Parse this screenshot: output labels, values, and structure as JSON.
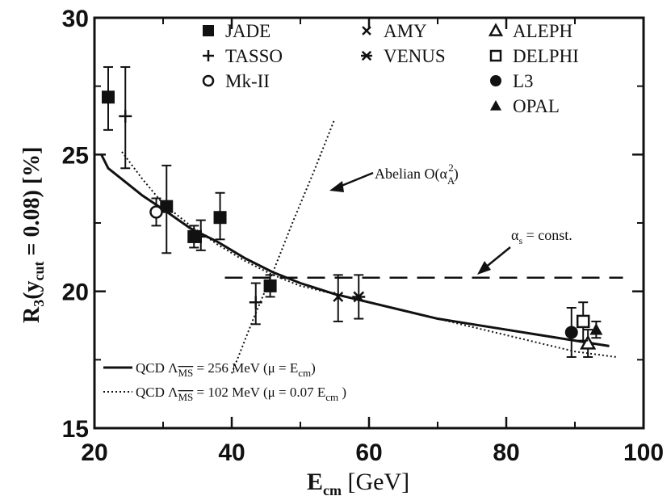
{
  "chart_data": {
    "type": "scatter",
    "xlim": [
      20,
      100
    ],
    "ylim": [
      15,
      30
    ],
    "x_ticks": [
      "20",
      "40",
      "60",
      "80",
      "100"
    ],
    "y_ticks": [
      "15",
      "20",
      "25",
      "30"
    ],
    "ylabel_text": {
      "main": "R",
      "sub3": "3",
      "open": "(y",
      "cut": "cut",
      "rest": " = 0.08) [%]"
    },
    "xlabel_text": {
      "main": "E",
      "cm": "cm",
      "rest": " [GeV]"
    },
    "grid": false,
    "legend_placement": "top",
    "series": [
      {
        "name": "JADE",
        "marker": "filled-square",
        "points": [
          {
            "x": 22,
            "y": 27.1,
            "lo": 25.9,
            "hi": 28.2
          },
          {
            "x": 30.5,
            "y": 23.1,
            "lo": 21.4,
            "hi": 24.6
          },
          {
            "x": 34.5,
            "y": 22.0,
            "lo": 21.6,
            "hi": 22.4
          },
          {
            "x": 38.3,
            "y": 22.7,
            "lo": 21.9,
            "hi": 23.6
          },
          {
            "x": 45.6,
            "y": 20.2,
            "lo": 19.8,
            "hi": 20.6
          }
        ]
      },
      {
        "name": "TASSO",
        "marker": "plus",
        "points": [
          {
            "x": 24.5,
            "y": 26.4,
            "lo": 24.5,
            "hi": 28.2
          },
          {
            "x": 35.5,
            "y": 22.0,
            "lo": 21.5,
            "hi": 22.6
          },
          {
            "x": 43.5,
            "y": 19.6,
            "lo": 18.8,
            "hi": 20.3
          }
        ]
      },
      {
        "name": "Mk-II",
        "marker": "open-circle",
        "points": [
          {
            "x": 29,
            "y": 22.9,
            "lo": 22.4,
            "hi": 23.4
          }
        ]
      },
      {
        "name": "AMY",
        "marker": "cross",
        "points": [
          {
            "x": 55.5,
            "y": 19.8,
            "lo": 18.9,
            "hi": 20.6
          }
        ]
      },
      {
        "name": "VENUS",
        "marker": "star",
        "points": [
          {
            "x": 58.5,
            "y": 19.8,
            "lo": 19.0,
            "hi": 20.6
          }
        ]
      },
      {
        "name": "ALEPH",
        "marker": "open-triangle",
        "points": [
          {
            "x": 91.9,
            "y": 18.1,
            "lo": 17.6,
            "hi": 18.6
          }
        ]
      },
      {
        "name": "DELPHI",
        "marker": "open-square",
        "points": [
          {
            "x": 91.2,
            "y": 18.9,
            "lo": 18.2,
            "hi": 19.6
          }
        ]
      },
      {
        "name": "L3",
        "marker": "filled-circle",
        "points": [
          {
            "x": 89.5,
            "y": 18.5,
            "lo": 17.6,
            "hi": 19.4
          }
        ]
      },
      {
        "name": "OPAL",
        "marker": "filled-triangle",
        "points": [
          {
            "x": 93.1,
            "y": 18.6,
            "lo": 18.3,
            "hi": 18.9
          }
        ]
      }
    ],
    "curves": [
      {
        "name": "QCD Λ_MS = 256 MeV (μ = E_cm)",
        "style": "solid",
        "x": [
          21,
          22,
          24,
          27,
          30,
          34,
          38,
          42,
          46,
          50,
          55,
          60,
          65,
          70,
          75,
          80,
          85,
          90,
          95
        ],
        "y": [
          25.0,
          24.5,
          24.1,
          23.5,
          23.0,
          22.3,
          21.8,
          21.2,
          20.7,
          20.3,
          19.9,
          19.6,
          19.3,
          19.0,
          18.8,
          18.6,
          18.4,
          18.2,
          18.0
        ]
      },
      {
        "name": "QCD Λ_MS = 102 MeV (μ = 0.07 E_cm)",
        "style": "dotted",
        "x": [
          24,
          27,
          30,
          34,
          38,
          42,
          46,
          50,
          55,
          60,
          65,
          70,
          75,
          80,
          85,
          90,
          96
        ],
        "y": [
          25.1,
          24.1,
          23.2,
          22.4,
          21.7,
          21.1,
          20.6,
          20.2,
          19.9,
          19.6,
          19.3,
          19.0,
          18.7,
          18.4,
          18.1,
          17.8,
          17.6
        ]
      },
      {
        "name": "Abelian",
        "style": "dotted",
        "x": [
          40,
          43,
          46,
          49,
          52,
          55
        ],
        "y": [
          17.0,
          18.9,
          20.7,
          22.6,
          24.4,
          26.3
        ]
      },
      {
        "name": "alpha_s const",
        "style": "dashed",
        "x": [
          39,
          97
        ],
        "y": [
          20.5,
          20.5
        ]
      }
    ],
    "annotations": {
      "abelian": {
        "prefix": "Abelian O(α",
        "sub": "A",
        "sup": "2",
        "suffix": ")"
      },
      "alpha_const": {
        "prefix": "α",
        "sub": "s",
        "suffix": " = const."
      }
    },
    "curve_legend": {
      "solid": {
        "a": "QCD  Λ",
        "ms": "MS",
        "b": " = 256 MeV (μ  = E",
        "cm": "cm",
        "c": ")"
      },
      "dotted": {
        "a": "QCD  Λ",
        "ms": "MS",
        "b": " = 102 MeV (μ  = 0.07 E",
        "cm": "cm",
        "c": " )"
      }
    }
  }
}
